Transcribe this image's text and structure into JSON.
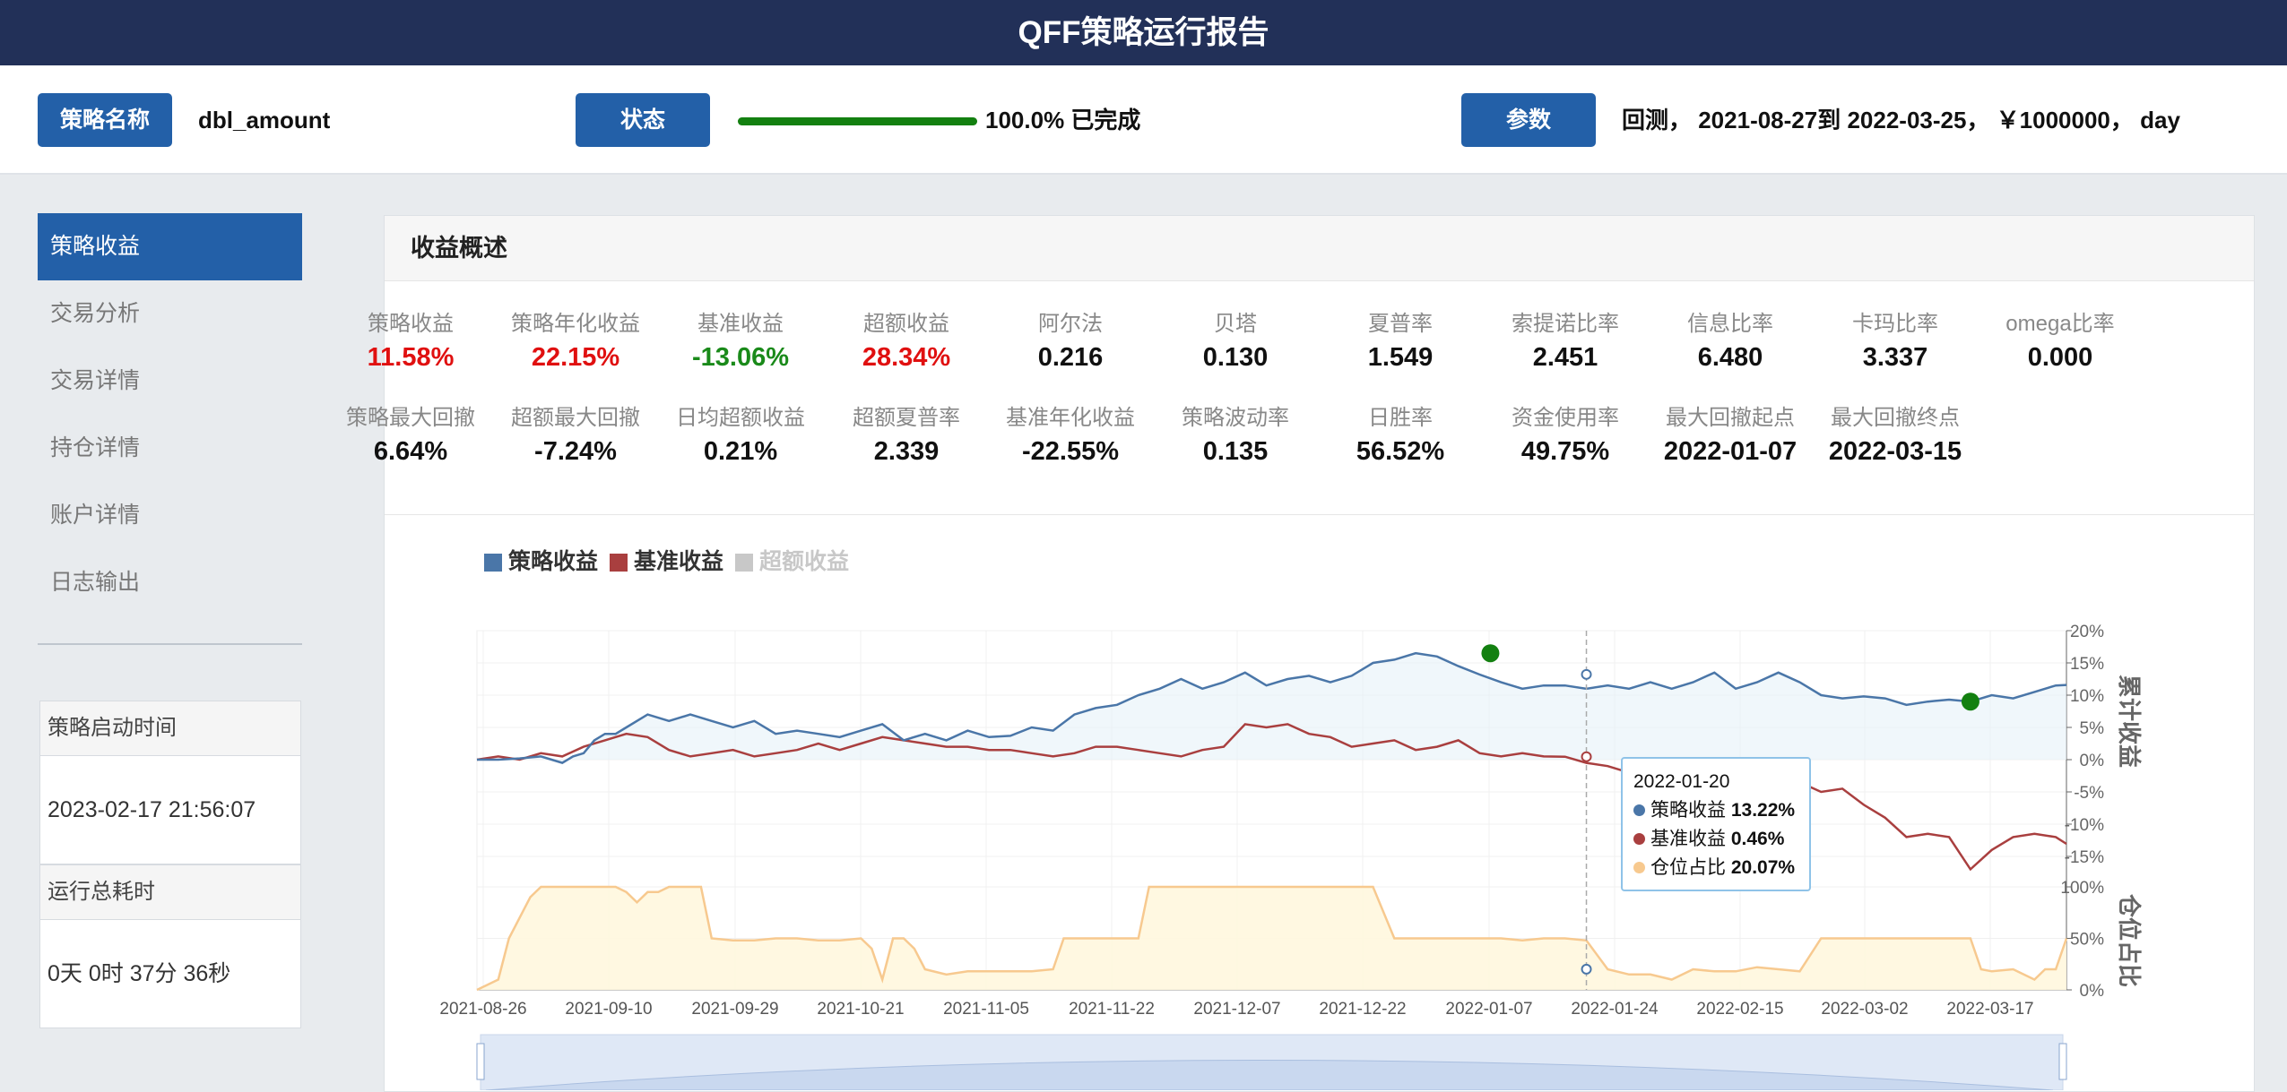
{
  "header": {
    "title": "QFF策略运行报告"
  },
  "topbar": {
    "name_button": "策略名称",
    "strategy_name": "dbl_amount",
    "status_button": "状态",
    "progress_fraction": 1.0,
    "progress_text": "100.0% 已完成",
    "params_button": "参数",
    "params_text": "回测， 2021-08-27到 2022-03-25， ￥1000000， day"
  },
  "sidebar": {
    "items": [
      {
        "label": "策略收益",
        "active": true
      },
      {
        "label": "交易分析",
        "active": false
      },
      {
        "label": "交易详情",
        "active": false
      },
      {
        "label": "持仓详情",
        "active": false
      },
      {
        "label": "账户详情",
        "active": false
      },
      {
        "label": "日志输出",
        "active": false
      }
    ],
    "start_time_label": "策略启动时间",
    "start_time_value": "2023-02-17 21:56:07",
    "elapsed_label": "运行总耗时",
    "elapsed_value": "0天 0时 37分 36秒"
  },
  "panel": {
    "title": "收益概述",
    "metrics_row1": [
      {
        "label": "策略收益",
        "value": "11.58%",
        "color": "red"
      },
      {
        "label": "策略年化收益",
        "value": "22.15%",
        "color": "red"
      },
      {
        "label": "基准收益",
        "value": "-13.06%",
        "color": "green"
      },
      {
        "label": "超额收益",
        "value": "28.34%",
        "color": "red"
      },
      {
        "label": "阿尔法",
        "value": "0.216",
        "color": "black"
      },
      {
        "label": "贝塔",
        "value": "0.130",
        "color": "black"
      },
      {
        "label": "夏普率",
        "value": "1.549",
        "color": "black"
      },
      {
        "label": "索提诺比率",
        "value": "2.451",
        "color": "black"
      },
      {
        "label": "信息比率",
        "value": "6.480",
        "color": "black"
      },
      {
        "label": "卡玛比率",
        "value": "3.337",
        "color": "black"
      },
      {
        "label": "omega比率",
        "value": "0.000",
        "color": "black"
      }
    ],
    "metrics_row2": [
      {
        "label": "策略最大回撤",
        "value": "6.64%"
      },
      {
        "label": "超额最大回撤",
        "value": "-7.24%"
      },
      {
        "label": "日均超额收益",
        "value": "0.21%"
      },
      {
        "label": "超额夏普率",
        "value": "2.339"
      },
      {
        "label": "基准年化收益",
        "value": "-22.55%"
      },
      {
        "label": "策略波动率",
        "value": "0.135"
      },
      {
        "label": "日胜率",
        "value": "56.52%"
      },
      {
        "label": "资金使用率",
        "value": "49.75%"
      },
      {
        "label": "最大回撤起点",
        "value": "2022-01-07"
      },
      {
        "label": "最大回撤终点",
        "value": "2022-03-15"
      }
    ]
  },
  "chart_data": {
    "type": "line",
    "legend": [
      {
        "name": "策略收益",
        "color": "#4a76a8",
        "enabled": true
      },
      {
        "name": "基准收益",
        "color": "#a93f3f",
        "enabled": true
      },
      {
        "name": "超额收益",
        "color": "#c8c8c8",
        "enabled": false
      }
    ],
    "x_ticks": [
      "2021-08-26",
      "2021-09-10",
      "2021-09-29",
      "2021-10-21",
      "2021-11-05",
      "2021-11-22",
      "2021-12-07",
      "2021-12-22",
      "2022-01-07",
      "2022-01-24",
      "2022-02-15",
      "2022-03-02",
      "2022-03-17"
    ],
    "returns_axis": {
      "label": "累计收益",
      "ticks": [
        "20%",
        "15%",
        "10%",
        "5%",
        "0%",
        "-5%",
        "-10%",
        "-15%"
      ],
      "ylim": [
        -15,
        20
      ]
    },
    "position_axis": {
      "label": "仓位占比",
      "ticks": [
        "100%",
        "50%",
        "0%"
      ],
      "ylim": [
        0,
        100
      ]
    },
    "series": [
      {
        "name": "策略收益",
        "color": "#4a76a8",
        "x": [
          0,
          2,
          4,
          6,
          7,
          8,
          9,
          10,
          11,
          12,
          13,
          14,
          16,
          18,
          20,
          22,
          24,
          26,
          28,
          30,
          32,
          34,
          36,
          38,
          40,
          42,
          44,
          46,
          48,
          50,
          52,
          54,
          56,
          58,
          60,
          62,
          64,
          66,
          68,
          70,
          72,
          74,
          76,
          78,
          80,
          82,
          84,
          86,
          88,
          90,
          92,
          94,
          96,
          98,
          100,
          102,
          104,
          106,
          108,
          110,
          112,
          114,
          116,
          118,
          120,
          122,
          124,
          126,
          128,
          130,
          132,
          134,
          136,
          138,
          140,
          142,
          144,
          146,
          148,
          149
        ],
        "values": [
          0,
          0,
          0.2,
          0.5,
          0,
          -0.5,
          0.5,
          1,
          3,
          4,
          4,
          5,
          7,
          6,
          7,
          6,
          5,
          6,
          4,
          4.5,
          4,
          3.5,
          4.5,
          5.5,
          3,
          4,
          3,
          4.5,
          3.5,
          3.7,
          5,
          4.5,
          7,
          8,
          8.5,
          10,
          11,
          12.5,
          11,
          12,
          13.5,
          11.5,
          12.5,
          13,
          12,
          13,
          15,
          15.5,
          16.5,
          16,
          14.5,
          13.2,
          12,
          11,
          11.5,
          11.5,
          11,
          11.5,
          11,
          12,
          11,
          12,
          13.5,
          11,
          12,
          13.5,
          12,
          10,
          9.5,
          9.8,
          9.5,
          8.5,
          9,
          9.3,
          9,
          10,
          9.5,
          10.5,
          11.5,
          11.58
        ]
      },
      {
        "name": "基准收益",
        "color": "#a93f3f",
        "x": [
          0,
          2,
          4,
          6,
          8,
          10,
          12,
          14,
          16,
          18,
          20,
          22,
          24,
          26,
          28,
          30,
          32,
          34,
          36,
          38,
          40,
          42,
          44,
          46,
          48,
          50,
          52,
          54,
          56,
          58,
          60,
          62,
          64,
          66,
          68,
          70,
          72,
          74,
          76,
          78,
          80,
          82,
          84,
          86,
          88,
          90,
          92,
          94,
          96,
          98,
          100,
          102,
          104,
          106,
          108,
          110,
          112,
          114,
          116,
          118,
          120,
          122,
          124,
          126,
          128,
          130,
          132,
          134,
          136,
          138,
          140,
          142,
          144,
          146,
          148,
          149
        ],
        "values": [
          0,
          0.5,
          0,
          1,
          0.5,
          2,
          3,
          4,
          3.5,
          1.5,
          0.5,
          1,
          1.5,
          0.5,
          1,
          1.5,
          2.5,
          1.5,
          2.5,
          3.5,
          3,
          2.5,
          2,
          2,
          1.5,
          1.5,
          1,
          0.5,
          1,
          2,
          2,
          1.5,
          1,
          0.5,
          1.5,
          2,
          5.5,
          5,
          5.5,
          4,
          3.5,
          2,
          2.5,
          3,
          1.5,
          2,
          3,
          1,
          0.5,
          1,
          0.5,
          0.46,
          -0.5,
          -1,
          -2,
          -3,
          -1.5,
          -4,
          -5,
          -3,
          -4,
          -5,
          -3.5,
          -5,
          -4.5,
          -7,
          -9,
          -12,
          -11.5,
          -12,
          -17,
          -14,
          -12,
          -11.5,
          -12,
          -13.06
        ]
      },
      {
        "name": "仓位占比",
        "color": "#f7c98f",
        "x": [
          0,
          2,
          3,
          5,
          6,
          8,
          10,
          13,
          14,
          15,
          16,
          17,
          18,
          19,
          20,
          21,
          22,
          24,
          26,
          28,
          30,
          32,
          34,
          36,
          37,
          38,
          39,
          40,
          41,
          42,
          44,
          46,
          48,
          50,
          52,
          54,
          55,
          56,
          58,
          60,
          62,
          63,
          64,
          66,
          68,
          70,
          72,
          74,
          76,
          80,
          84,
          86,
          88,
          90,
          92,
          94,
          96,
          98,
          100,
          102,
          104,
          106,
          108,
          110,
          112,
          114,
          116,
          118,
          120,
          122,
          124,
          126,
          128,
          130,
          132,
          134,
          136,
          138,
          140,
          141,
          142,
          144,
          146,
          147,
          148,
          149
        ],
        "values": [
          0,
          10,
          50,
          90,
          100,
          100,
          100,
          100,
          95,
          85,
          95,
          95,
          100,
          100,
          100,
          100,
          50,
          48,
          48,
          50,
          50,
          48,
          48,
          50,
          40,
          10,
          50,
          50,
          40,
          20,
          15,
          18,
          18,
          18,
          18,
          20,
          50,
          50,
          50,
          50,
          50,
          100,
          100,
          100,
          100,
          100,
          100,
          100,
          100,
          100,
          100,
          50,
          50,
          50,
          50,
          50,
          50,
          48,
          50,
          50,
          48,
          20,
          15,
          15,
          10,
          20,
          18,
          18,
          22,
          20,
          18,
          50,
          50,
          50,
          50,
          50,
          50,
          50,
          50,
          20,
          18,
          20,
          10,
          20,
          20,
          50
        ]
      }
    ],
    "markers": [
      {
        "label": "最大回撤起点",
        "date": "2022-01-07",
        "value": 16.5
      },
      {
        "label": "最大回撤终点",
        "date": "2022-03-15",
        "value": 9.0
      }
    ],
    "tooltip": {
      "date": "2022-01-20",
      "rows": [
        {
          "name": "策略收益",
          "value": "13.22%",
          "color": "#4a76a8"
        },
        {
          "name": "基准收益",
          "value": "0.46%",
          "color": "#a93f3f"
        },
        {
          "name": "仓位占比",
          "value": "20.07%",
          "color": "#f7c98f"
        }
      ]
    }
  }
}
